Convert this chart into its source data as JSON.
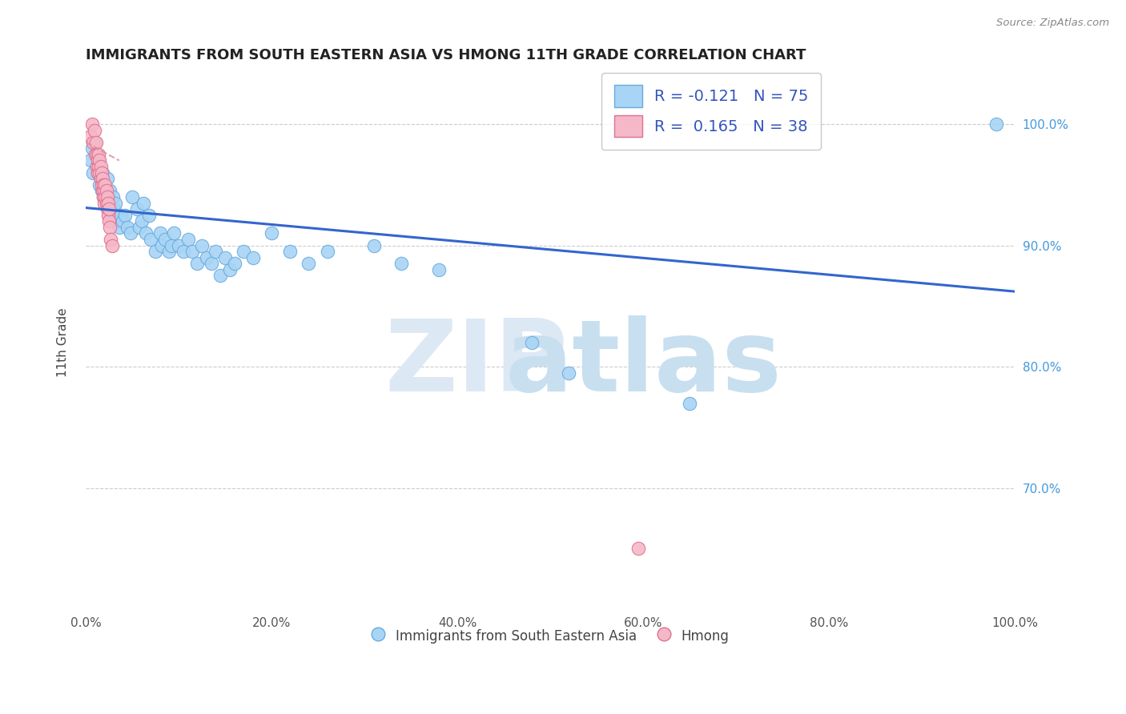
{
  "title": "IMMIGRANTS FROM SOUTH EASTERN ASIA VS HMONG 11TH GRADE CORRELATION CHART",
  "source": "Source: ZipAtlas.com",
  "ylabel": "11th Grade",
  "xlim": [
    0,
    1.0
  ],
  "ylim": [
    0.6,
    1.04
  ],
  "right_yticks": [
    0.7,
    0.8,
    0.9,
    1.0
  ],
  "right_yticklabels": [
    "70.0%",
    "80.0%",
    "90.0%",
    "100.0%"
  ],
  "xtick_labels": [
    "0.0%",
    "20.0%",
    "40.0%",
    "60.0%",
    "80.0%",
    "100.0%"
  ],
  "xtick_values": [
    0.0,
    0.2,
    0.4,
    0.6,
    0.8,
    1.0
  ],
  "legend_label1": "R = -0.121   N = 75",
  "legend_label2": "R =  0.165   N = 38",
  "legend_bottom1": "Immigrants from South Eastern Asia",
  "legend_bottom2": "Hmong",
  "color_blue": "#a8d4f5",
  "color_pink": "#f5b8c8",
  "color_blue_edge": "#6aabdd",
  "color_pink_edge": "#e07090",
  "trendline_blue": "#3366cc",
  "trendline_pink": "#dd8899",
  "trendline_blue_start_y": 0.931,
  "trendline_blue_end_y": 0.862,
  "trendline_pink_start_x": 0.0,
  "trendline_pink_end_x": 0.036,
  "blue_scatter_x": [
    0.005,
    0.007,
    0.008,
    0.01,
    0.011,
    0.012,
    0.013,
    0.014,
    0.015,
    0.016,
    0.017,
    0.018,
    0.019,
    0.02,
    0.021,
    0.022,
    0.023,
    0.024,
    0.025,
    0.026,
    0.027,
    0.028,
    0.029,
    0.03,
    0.031,
    0.032,
    0.033,
    0.035,
    0.036,
    0.038,
    0.04,
    0.042,
    0.045,
    0.048,
    0.05,
    0.055,
    0.058,
    0.06,
    0.062,
    0.065,
    0.068,
    0.07,
    0.075,
    0.08,
    0.082,
    0.085,
    0.09,
    0.092,
    0.095,
    0.1,
    0.105,
    0.11,
    0.115,
    0.12,
    0.125,
    0.13,
    0.135,
    0.14,
    0.145,
    0.15,
    0.155,
    0.16,
    0.17,
    0.18,
    0.2,
    0.22,
    0.24,
    0.26,
    0.31,
    0.34,
    0.38,
    0.48,
    0.52,
    0.65,
    0.98
  ],
  "blue_scatter_y": [
    0.97,
    0.98,
    0.96,
    0.985,
    0.975,
    0.965,
    0.96,
    0.97,
    0.95,
    0.955,
    0.945,
    0.96,
    0.94,
    0.95,
    0.945,
    0.935,
    0.955,
    0.94,
    0.93,
    0.945,
    0.935,
    0.925,
    0.94,
    0.93,
    0.92,
    0.935,
    0.925,
    0.92,
    0.915,
    0.925,
    0.92,
    0.925,
    0.915,
    0.91,
    0.94,
    0.93,
    0.915,
    0.92,
    0.935,
    0.91,
    0.925,
    0.905,
    0.895,
    0.91,
    0.9,
    0.905,
    0.895,
    0.9,
    0.91,
    0.9,
    0.895,
    0.905,
    0.895,
    0.885,
    0.9,
    0.89,
    0.885,
    0.895,
    0.875,
    0.89,
    0.88,
    0.885,
    0.895,
    0.89,
    0.91,
    0.895,
    0.885,
    0.895,
    0.9,
    0.885,
    0.88,
    0.82,
    0.795,
    0.77,
    1.0
  ],
  "pink_scatter_x": [
    0.005,
    0.007,
    0.008,
    0.009,
    0.01,
    0.011,
    0.012,
    0.012,
    0.013,
    0.013,
    0.014,
    0.014,
    0.015,
    0.015,
    0.016,
    0.016,
    0.017,
    0.017,
    0.018,
    0.018,
    0.019,
    0.019,
    0.02,
    0.02,
    0.021,
    0.021,
    0.022,
    0.022,
    0.023,
    0.023,
    0.024,
    0.024,
    0.025,
    0.025,
    0.026,
    0.027,
    0.028,
    0.595
  ],
  "pink_scatter_y": [
    0.99,
    1.0,
    0.985,
    0.995,
    0.975,
    0.985,
    0.965,
    0.975,
    0.97,
    0.96,
    0.975,
    0.965,
    0.96,
    0.97,
    0.955,
    0.965,
    0.95,
    0.96,
    0.945,
    0.955,
    0.94,
    0.95,
    0.945,
    0.935,
    0.94,
    0.95,
    0.935,
    0.945,
    0.93,
    0.94,
    0.935,
    0.925,
    0.92,
    0.93,
    0.915,
    0.905,
    0.9,
    0.65
  ]
}
